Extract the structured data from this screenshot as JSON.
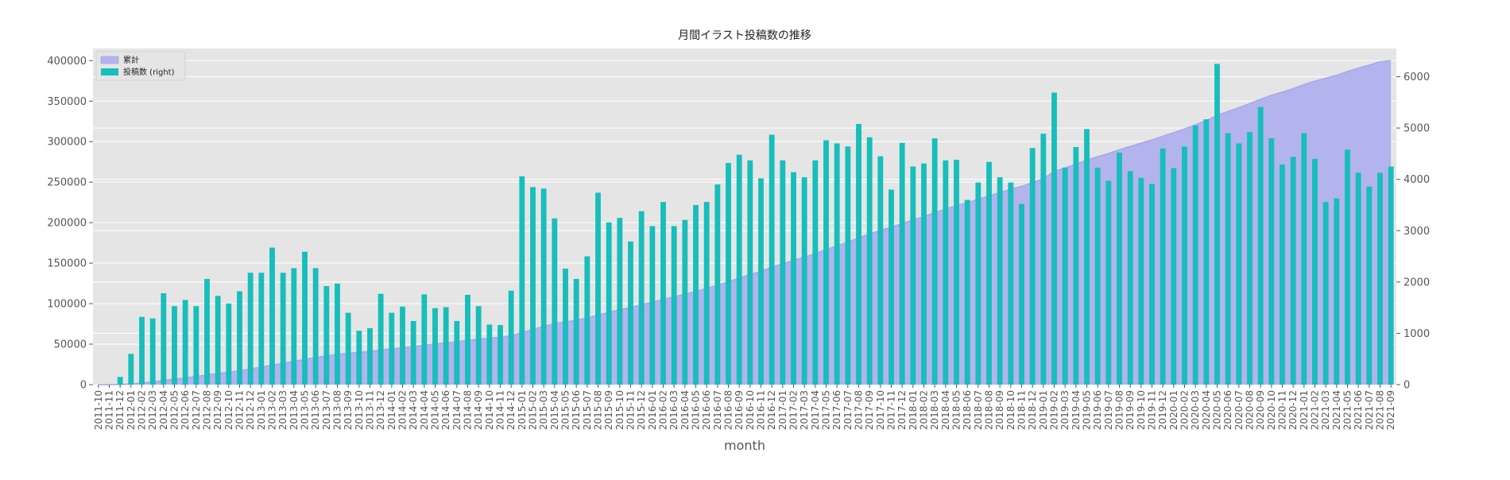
{
  "chart_data": {
    "type": "bar",
    "title": "月間イラスト投稿数の推移",
    "xlabel": "month",
    "ylabel": "",
    "ylim_left": [
      0,
      415000
    ],
    "ylim_right": [
      0,
      6550
    ],
    "yticks_left": [
      0,
      50000,
      100000,
      150000,
      200000,
      250000,
      300000,
      350000,
      400000
    ],
    "yticks_right": [
      0,
      1000,
      2000,
      3000,
      4000,
      5000,
      6000
    ],
    "grid": true,
    "legend_position": "top-left",
    "categories": [
      "2011-10",
      "2011-11",
      "2011-12",
      "2012-01",
      "2012-02",
      "2012-03",
      "2012-04",
      "2012-05",
      "2012-06",
      "2012-07",
      "2012-08",
      "2012-09",
      "2012-10",
      "2012-11",
      "2012-12",
      "2013-01",
      "2013-02",
      "2013-03",
      "2013-04",
      "2013-05",
      "2013-06",
      "2013-07",
      "2013-08",
      "2013-09",
      "2013-10",
      "2013-11",
      "2013-12",
      "2014-01",
      "2014-02",
      "2014-03",
      "2014-04",
      "2014-05",
      "2014-06",
      "2014-07",
      "2014-08",
      "2014-09",
      "2014-10",
      "2014-11",
      "2014-12",
      "2015-01",
      "2015-02",
      "2015-03",
      "2015-04",
      "2015-05",
      "2015-06",
      "2015-07",
      "2015-08",
      "2015-09",
      "2015-10",
      "2015-11",
      "2015-12",
      "2016-01",
      "2016-02",
      "2016-03",
      "2016-04",
      "2016-05",
      "2016-06",
      "2016-07",
      "2016-08",
      "2016-09",
      "2016-10",
      "2016-11",
      "2016-12",
      "2017-01",
      "2017-02",
      "2017-03",
      "2017-04",
      "2017-05",
      "2017-06",
      "2017-07",
      "2017-08",
      "2017-09",
      "2017-10",
      "2017-11",
      "2017-12",
      "2018-01",
      "2018-02",
      "2018-03",
      "2018-04",
      "2018-05",
      "2018-06",
      "2018-07",
      "2018-08",
      "2018-09",
      "2018-10",
      "2018-11",
      "2018-12",
      "2019-01",
      "2019-02",
      "2019-03",
      "2019-04",
      "2019-05",
      "2019-06",
      "2019-07",
      "2019-08",
      "2019-09",
      "2019-10",
      "2019-11",
      "2019-12",
      "2020-01",
      "2020-02",
      "2020-03",
      "2020-04",
      "2020-05",
      "2020-06",
      "2020-07",
      "2020-08",
      "2020-09",
      "2020-10",
      "2020-11",
      "2020-12",
      "2021-01",
      "2021-02",
      "2021-03",
      "2021-04",
      "2021-05",
      "2021-06",
      "2021-07",
      "2021-08",
      "2021-09"
    ],
    "series": [
      {
        "name": "累計",
        "kind": "area",
        "axis": "left",
        "color": "#b3b3ee",
        "line_color": "#a8a8ea",
        "values": [
          0,
          0,
          150,
          750,
          2100,
          3400,
          5200,
          6700,
          8400,
          10000,
          12000,
          13700,
          15300,
          17100,
          19300,
          21500,
          24100,
          26300,
          28600,
          31200,
          33500,
          35400,
          37400,
          38800,
          39800,
          40900,
          42700,
          44100,
          45600,
          46800,
          48600,
          50100,
          51600,
          52800,
          54600,
          56100,
          57300,
          58400,
          60200,
          64300,
          68200,
          72000,
          75300,
          77500,
          79600,
          82100,
          85900,
          89100,
          92400,
          95200,
          98600,
          101700,
          105300,
          108400,
          111600,
          115100,
          118700,
          122600,
          126900,
          131500,
          135900,
          139900,
          144800,
          149200,
          153300,
          157400,
          161800,
          166600,
          171300,
          176000,
          181100,
          185900,
          190400,
          194200,
          198900,
          203200,
          207500,
          212300,
          216700,
          221100,
          224700,
          228700,
          233100,
          237200,
          241200,
          244700,
          249400,
          254300,
          263300,
          267500,
          272200,
          277200,
          281400,
          285400,
          289900,
          294100,
          298200,
          302100,
          306700,
          311000,
          315700,
          320800,
          326000,
          332300,
          337200,
          341900,
          346900,
          352300,
          357200,
          361000,
          365400,
          370300,
          374800,
          378300,
          381900,
          386500,
          390700,
          394500,
          398600,
          400000
        ]
      },
      {
        "name": "投稿数 (right)",
        "kind": "bar",
        "axis": "right",
        "color": "#17bebb",
        "values": [
          0,
          0,
          150,
          600,
          1320,
          1290,
          1780,
          1530,
          1650,
          1530,
          2060,
          1730,
          1580,
          1820,
          2180,
          2180,
          2670,
          2180,
          2270,
          2590,
          2270,
          1920,
          1970,
          1400,
          1050,
          1100,
          1770,
          1400,
          1520,
          1240,
          1760,
          1490,
          1510,
          1240,
          1750,
          1530,
          1170,
          1160,
          1830,
          4060,
          3850,
          3820,
          3240,
          2260,
          2060,
          2500,
          3740,
          3160,
          3250,
          2790,
          3380,
          3090,
          3560,
          3090,
          3210,
          3500,
          3560,
          3900,
          4320,
          4480,
          4370,
          4020,
          4870,
          4370,
          4140,
          4040,
          4370,
          4760,
          4700,
          4640,
          5080,
          4820,
          4450,
          3800,
          4710,
          4250,
          4310,
          4800,
          4370,
          4380,
          3600,
          3940,
          4340,
          4040,
          3940,
          3520,
          4610,
          4890,
          5690,
          4230,
          4630,
          4980,
          4230,
          3970,
          4520,
          4160,
          4030,
          3910,
          4600,
          4220,
          4640,
          5050,
          5170,
          6250,
          4900,
          4700,
          4920,
          5410,
          4800,
          4290,
          4440,
          4900,
          4400,
          3560,
          3630,
          4580,
          4130,
          3860,
          4130,
          4250
        ]
      }
    ]
  }
}
